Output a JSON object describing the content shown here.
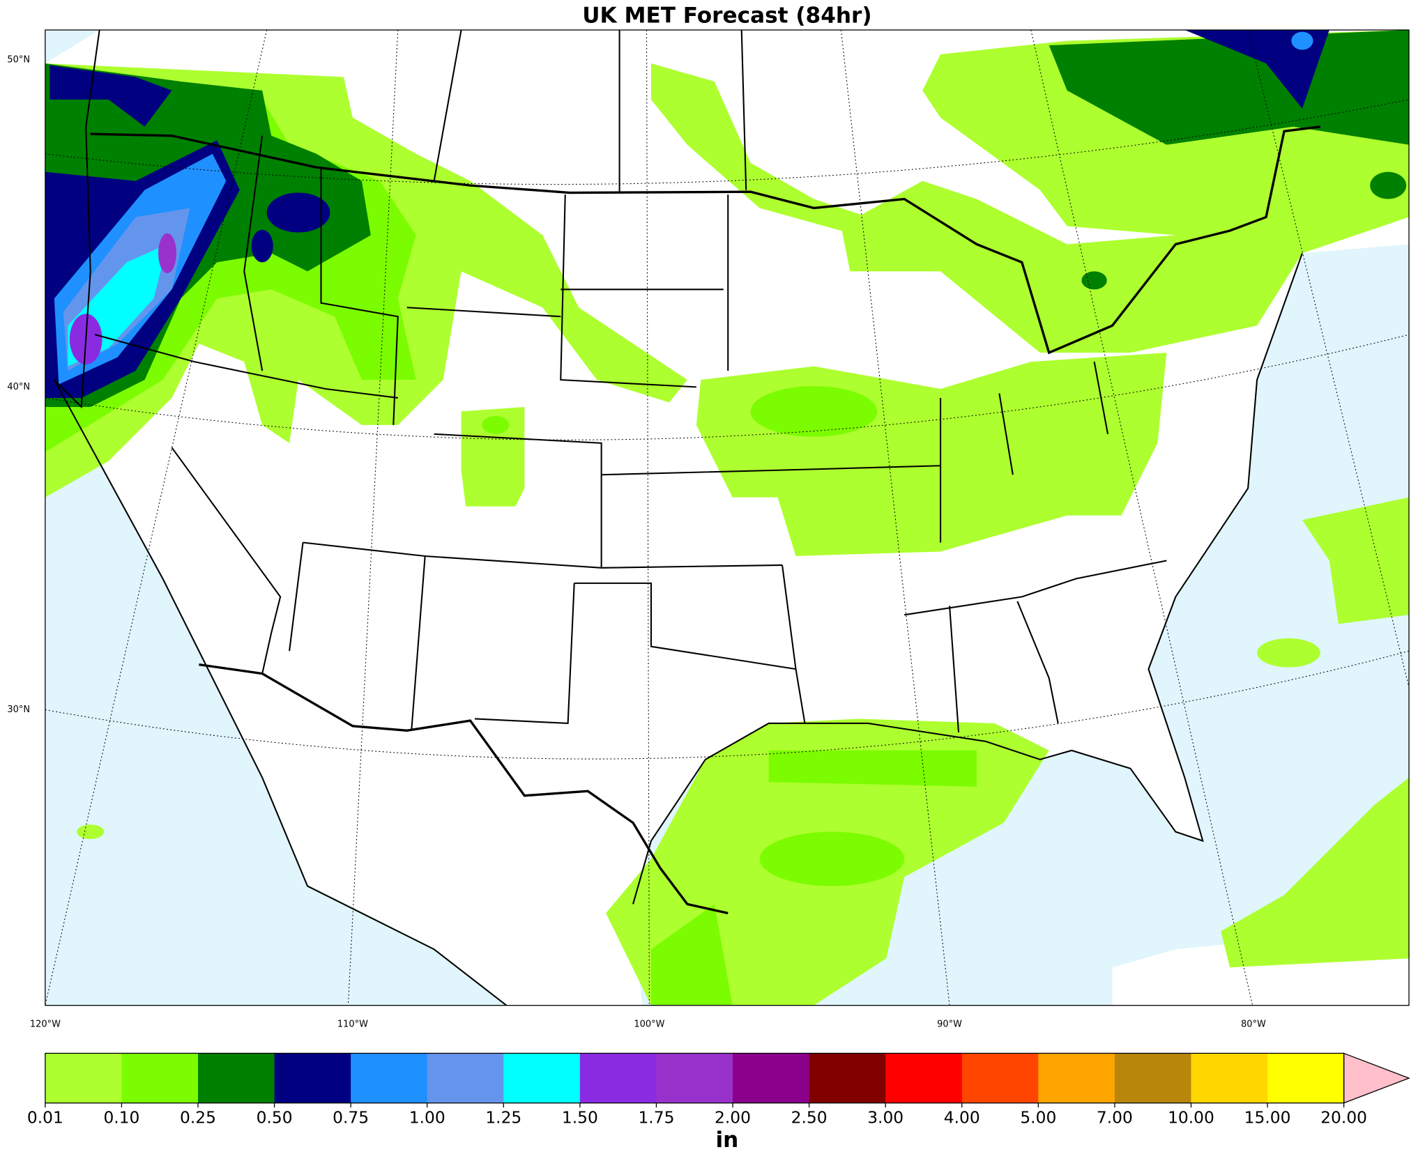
{
  "title": "UK MET Forecast (84hr)",
  "lat_labels": [
    "50°N",
    "40°N",
    "30°N"
  ],
  "lon_labels": [
    "120°W",
    "110°W",
    "100°W",
    "90°W",
    "80°W"
  ],
  "colorbar": {
    "ticks": [
      "0.01",
      "0.10",
      "0.25",
      "0.50",
      "0.75",
      "1.00",
      "1.25",
      "1.50",
      "1.75",
      "2.00",
      "2.50",
      "3.00",
      "4.00",
      "5.00",
      "7.00",
      "10.00",
      "15.00",
      "20.00"
    ],
    "colors": [
      "#adff2f",
      "#7cfc00",
      "#008000",
      "#000080",
      "#1e90ff",
      "#6495ed",
      "#00ffff",
      "#8a2be2",
      "#9932cc",
      "#8b008b",
      "#800000",
      "#ff0000",
      "#ff4500",
      "#ffa500",
      "#b8860b",
      "#ffd700",
      "#ffff00",
      "#ffc0cb"
    ],
    "unit": "in"
  }
}
